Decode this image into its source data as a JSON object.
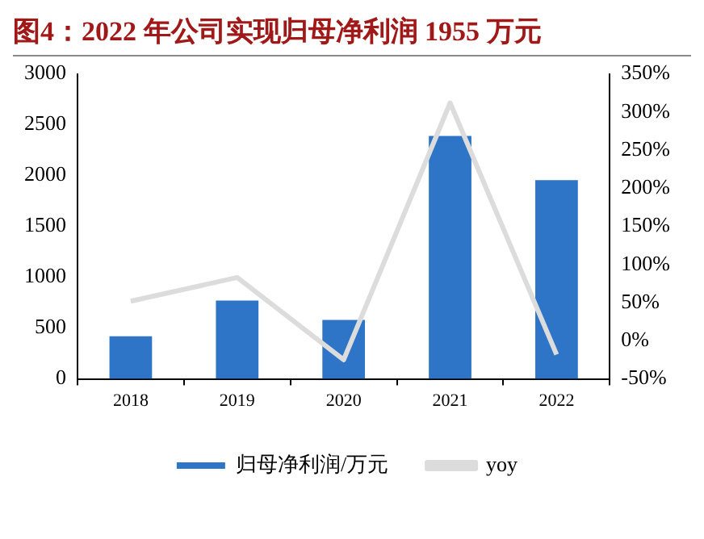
{
  "chart_data": {
    "type": "bar",
    "title": "图4：2022 年公司实现归母净利润 1955 万元",
    "categories": [
      "2018",
      "2019",
      "2020",
      "2021",
      "2022"
    ],
    "series": [
      {
        "name": "归母净利润/万元",
        "color": "#2e75c7",
        "values": [
          420,
          770,
          580,
          2390,
          1955
        ]
      },
      {
        "name": "yoy",
        "type": "line",
        "axis": "y2",
        "color": "#dcdcdc",
        "values": [
          52,
          83,
          -25,
          312,
          -18
        ]
      }
    ],
    "ylim": [
      0,
      3000
    ],
    "yticks": [
      0,
      500,
      1000,
      1500,
      2000,
      2500,
      3000
    ],
    "y2lim": [
      -50,
      350
    ],
    "y2ticks": [
      {
        "value": -50,
        "label": "-50%"
      },
      {
        "value": 0,
        "label": "0%"
      },
      {
        "value": 50,
        "label": "50%"
      },
      {
        "value": 100,
        "label": "100%"
      },
      {
        "value": 150,
        "label": "150%"
      },
      {
        "value": 200,
        "label": "200%"
      },
      {
        "value": 250,
        "label": "250%"
      },
      {
        "value": 300,
        "label": "300%"
      },
      {
        "value": 350,
        "label": "350%"
      }
    ],
    "grid": false,
    "legend": "bottom",
    "marker": "none"
  }
}
